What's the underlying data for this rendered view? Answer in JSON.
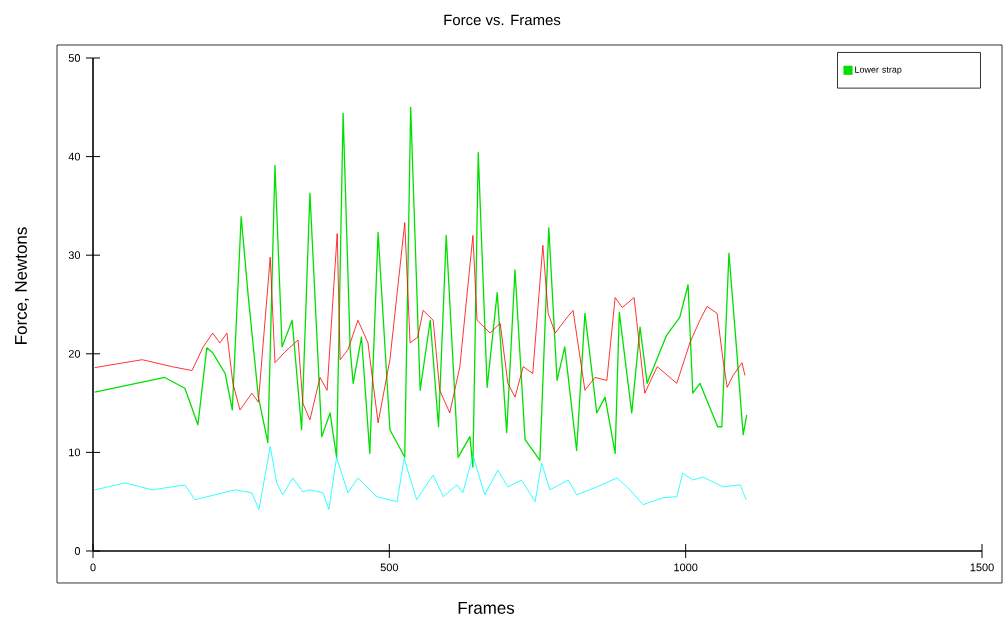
{
  "chart_data": {
    "type": "line",
    "title": "Force vs. Frames",
    "xlabel": "Frames",
    "ylabel": "Force, Newtons",
    "xlim": [
      0,
      1500
    ],
    "xticks": [
      0,
      500,
      1000,
      1500
    ],
    "ylim": [
      0,
      50
    ],
    "yticks": [
      0,
      10,
      20,
      30,
      40,
      50
    ],
    "grid": false,
    "legend": "top right",
    "marker": "none",
    "line_style": "solid",
    "series": [
      {
        "name": "Lower strap",
        "color": "#00e000",
        "x": [
          3,
          121,
          155,
          177,
          192,
          202,
          223,
          235,
          250,
          262,
          279,
          295,
          307,
          319,
          336,
          352,
          366,
          386,
          400,
          411,
          422,
          434,
          439,
          453,
          467,
          481,
          501,
          526,
          536,
          552,
          569,
          583,
          596,
          616,
          636,
          641,
          650,
          665,
          682,
          698,
          712,
          729,
          754,
          769,
          783,
          796,
          816,
          830,
          850,
          864,
          881,
          888,
          909,
          923,
          935,
          968,
          990,
          1004,
          1012,
          1024,
          1054,
          1061,
          1073,
          1086,
          1097,
          1103
        ],
        "values": [
          16.1,
          17.6,
          16.5,
          12.8,
          20.6,
          20.1,
          18.0,
          14.3,
          33.9,
          25.8,
          15.6,
          11.0,
          39.1,
          20.7,
          23.4,
          12.3,
          36.3,
          11.6,
          14.0,
          9.5,
          44.4,
          20.4,
          17.0,
          21.7,
          9.9,
          32.3,
          12.3,
          9.5,
          45.0,
          16.3,
          23.4,
          12.6,
          32.0,
          9.5,
          11.6,
          8.5,
          40.4,
          16.6,
          26.2,
          12.0,
          28.5,
          11.3,
          9.2,
          32.8,
          17.3,
          20.7,
          10.2,
          24.1,
          14.0,
          15.6,
          9.9,
          24.2,
          14.0,
          22.7,
          17.0,
          21.9,
          23.7,
          27.0,
          16.0,
          17.0,
          12.6,
          12.6,
          30.2,
          20.4,
          11.8,
          13.8
        ]
      },
      {
        "color": "#ff0000",
        "x": [
          3,
          83,
          133,
          167,
          186,
          202,
          214,
          226,
          236,
          248,
          268,
          279,
          299,
          307,
          324,
          346,
          354,
          366,
          383,
          395,
          412,
          417,
          430,
          447,
          464,
          481,
          501,
          526,
          535,
          548,
          557,
          574,
          585,
          602,
          619,
          641,
          648,
          670,
          687,
          700,
          712,
          726,
          742,
          759,
          768,
          780,
          800,
          810,
          830,
          847,
          867,
          881,
          893,
          913,
          931,
          952,
          985,
          1007,
          1024,
          1036,
          1053,
          1063,
          1070,
          1080,
          1095,
          1100
        ],
        "values": [
          18.6,
          19.4,
          18.7,
          18.3,
          20.7,
          22.1,
          21.1,
          22.1,
          17.0,
          14.3,
          16.0,
          15.1,
          29.8,
          19.1,
          20.2,
          21.4,
          15.0,
          13.3,
          17.6,
          16.3,
          32.2,
          19.4,
          20.4,
          23.4,
          21.1,
          13.0,
          19.4,
          33.3,
          21.1,
          21.7,
          24.4,
          23.4,
          16.3,
          14.0,
          18.7,
          32.0,
          23.4,
          22.1,
          23.1,
          17.0,
          15.6,
          18.7,
          18.0,
          31.0,
          24.1,
          22.1,
          23.7,
          24.4,
          16.3,
          17.6,
          17.3,
          25.7,
          24.7,
          25.7,
          16.0,
          18.7,
          17.0,
          21.1,
          23.4,
          24.8,
          24.1,
          19.4,
          16.6,
          17.8,
          19.1,
          17.8
        ]
      },
      {
        "color": "#00ffff",
        "x": [
          3,
          54,
          100,
          155,
          172,
          240,
          268,
          280,
          299,
          310,
          320,
          337,
          354,
          366,
          388,
          398,
          411,
          430,
          447,
          479,
          513,
          525,
          546,
          574,
          591,
          614,
          624,
          641,
          661,
          683,
          700,
          723,
          746,
          757,
          771,
          802,
          816,
          850,
          884,
          903,
          928,
          962,
          985,
          995,
          1012,
          1029,
          1063,
          1092,
          1102
        ],
        "values": [
          6.2,
          6.9,
          6.2,
          6.7,
          5.2,
          6.2,
          5.9,
          4.2,
          10.6,
          6.9,
          5.7,
          7.4,
          6.0,
          6.2,
          5.9,
          4.2,
          9.5,
          5.9,
          7.4,
          5.5,
          5.0,
          9.4,
          5.2,
          7.7,
          5.5,
          6.7,
          5.9,
          9.7,
          5.7,
          8.2,
          6.5,
          7.2,
          5.0,
          8.9,
          6.2,
          7.2,
          5.7,
          6.5,
          7.4,
          6.4,
          4.7,
          5.4,
          5.5,
          7.9,
          7.2,
          7.5,
          6.5,
          6.7,
          5.2
        ]
      }
    ]
  }
}
